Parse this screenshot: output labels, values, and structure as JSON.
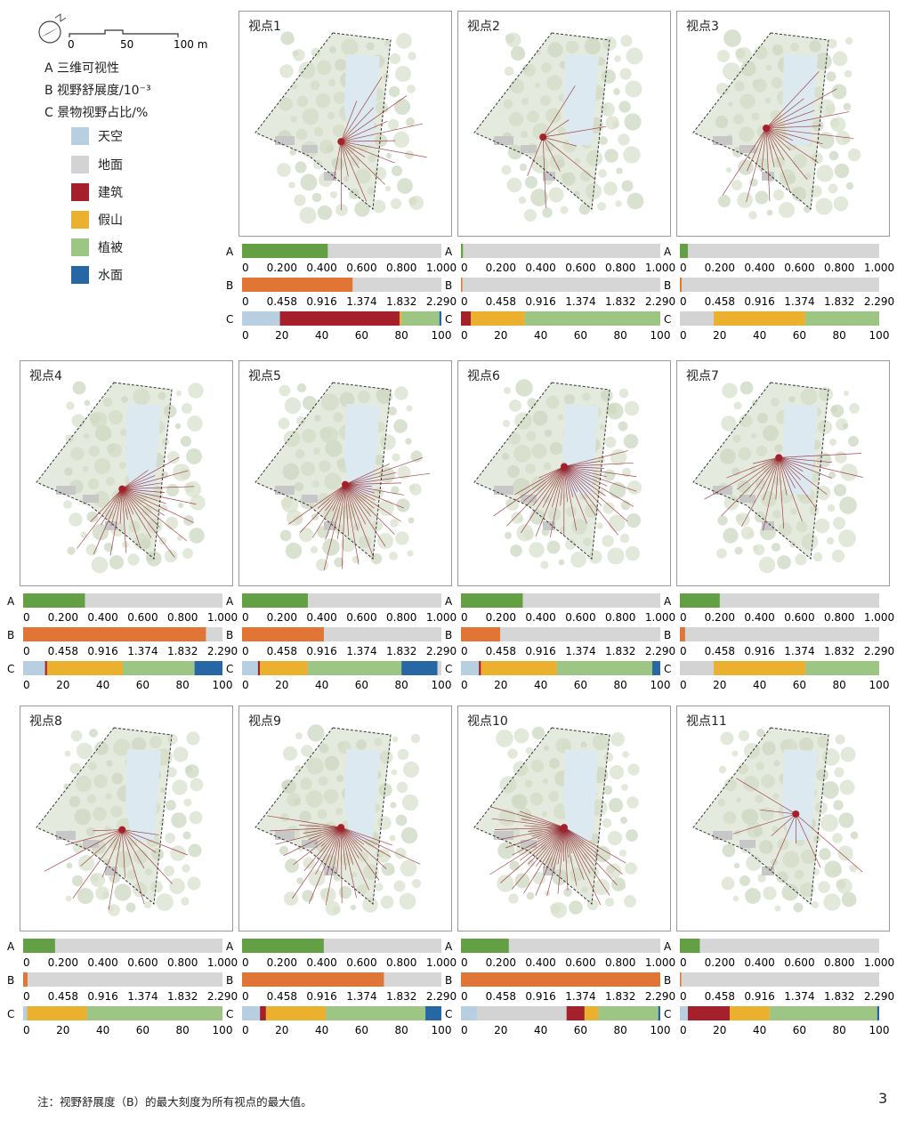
{
  "legend": {
    "scale": {
      "ticks": [
        "0",
        "50",
        "100 m"
      ]
    },
    "north_label": "N",
    "metrics": [
      {
        "key": "A",
        "label": "A 三维可视性"
      },
      {
        "key": "B",
        "label": "B 视野舒展度/10⁻³"
      },
      {
        "key": "C",
        "label": "C 景物视野占比/%"
      }
    ],
    "categories": [
      {
        "label": "天空",
        "color": "#b8cfe2"
      },
      {
        "label": "地面",
        "color": "#d3d3d3"
      },
      {
        "label": "建筑",
        "color": "#a5202a"
      },
      {
        "label": "假山",
        "color": "#ebb12e"
      },
      {
        "label": "植被",
        "color": "#9dc583"
      },
      {
        "label": "水面",
        "color": "#2767a3"
      }
    ]
  },
  "axes": {
    "A": {
      "ticks": [
        "0",
        "0.200",
        "0.400",
        "0.600",
        "0.800",
        "1.000"
      ],
      "max": 1.0,
      "color": "#62a043"
    },
    "B": {
      "ticks": [
        "0",
        "0.458",
        "0.916",
        "1.374",
        "1.832",
        "2.290"
      ],
      "max": 2.29,
      "color": "#e07535"
    },
    "C": {
      "ticks": [
        "0",
        "20",
        "40",
        "60",
        "80",
        "100"
      ],
      "max": 100
    }
  },
  "chart_data": {
    "type": "bar",
    "categories": [
      "天空",
      "地面",
      "建筑",
      "假山",
      "植被",
      "水面"
    ],
    "viewpoints": [
      {
        "title": "视点1",
        "A": 0.43,
        "B": 1.27,
        "C": [
          19,
          0,
          60,
          1,
          19,
          1
        ]
      },
      {
        "title": "视点2",
        "A": 0.01,
        "B": 0.01,
        "C": [
          0,
          0,
          5,
          27,
          68,
          0
        ]
      },
      {
        "title": "视点3",
        "A": 0.04,
        "B": 0.02,
        "C": [
          0,
          17,
          0,
          46,
          37,
          0
        ]
      },
      {
        "title": "视点4",
        "A": 0.31,
        "B": 2.1,
        "C": [
          11,
          0,
          1,
          38,
          36,
          14
        ]
      },
      {
        "title": "视点5",
        "A": 0.33,
        "B": 0.94,
        "C": [
          8,
          0,
          1,
          24,
          47,
          18
        ]
      },
      {
        "title": "视点6",
        "A": 0.31,
        "B": 0.45,
        "C": [
          9,
          0,
          1,
          38,
          48,
          4
        ]
      },
      {
        "title": "视点7",
        "A": 0.2,
        "B": 0.06,
        "C": [
          0,
          17,
          0,
          46,
          37,
          0
        ]
      },
      {
        "title": "视点8",
        "A": 0.16,
        "B": 0.05,
        "C": [
          2,
          0,
          0,
          30,
          68,
          0
        ]
      },
      {
        "title": "视点9",
        "A": 0.41,
        "B": 1.63,
        "C": [
          9,
          0,
          3,
          30,
          50,
          8
        ]
      },
      {
        "title": "视点10",
        "A": 0.24,
        "B": 2.29,
        "C": [
          8,
          45,
          9,
          7,
          30,
          1
        ]
      },
      {
        "title": "视点11",
        "A": 0.1,
        "B": 0.01,
        "C": [
          4,
          0,
          21,
          20,
          54,
          1
        ]
      }
    ]
  },
  "note": "注：视野舒展度（B）的最大刻度为所有视点的最大值。",
  "page_number": "3"
}
